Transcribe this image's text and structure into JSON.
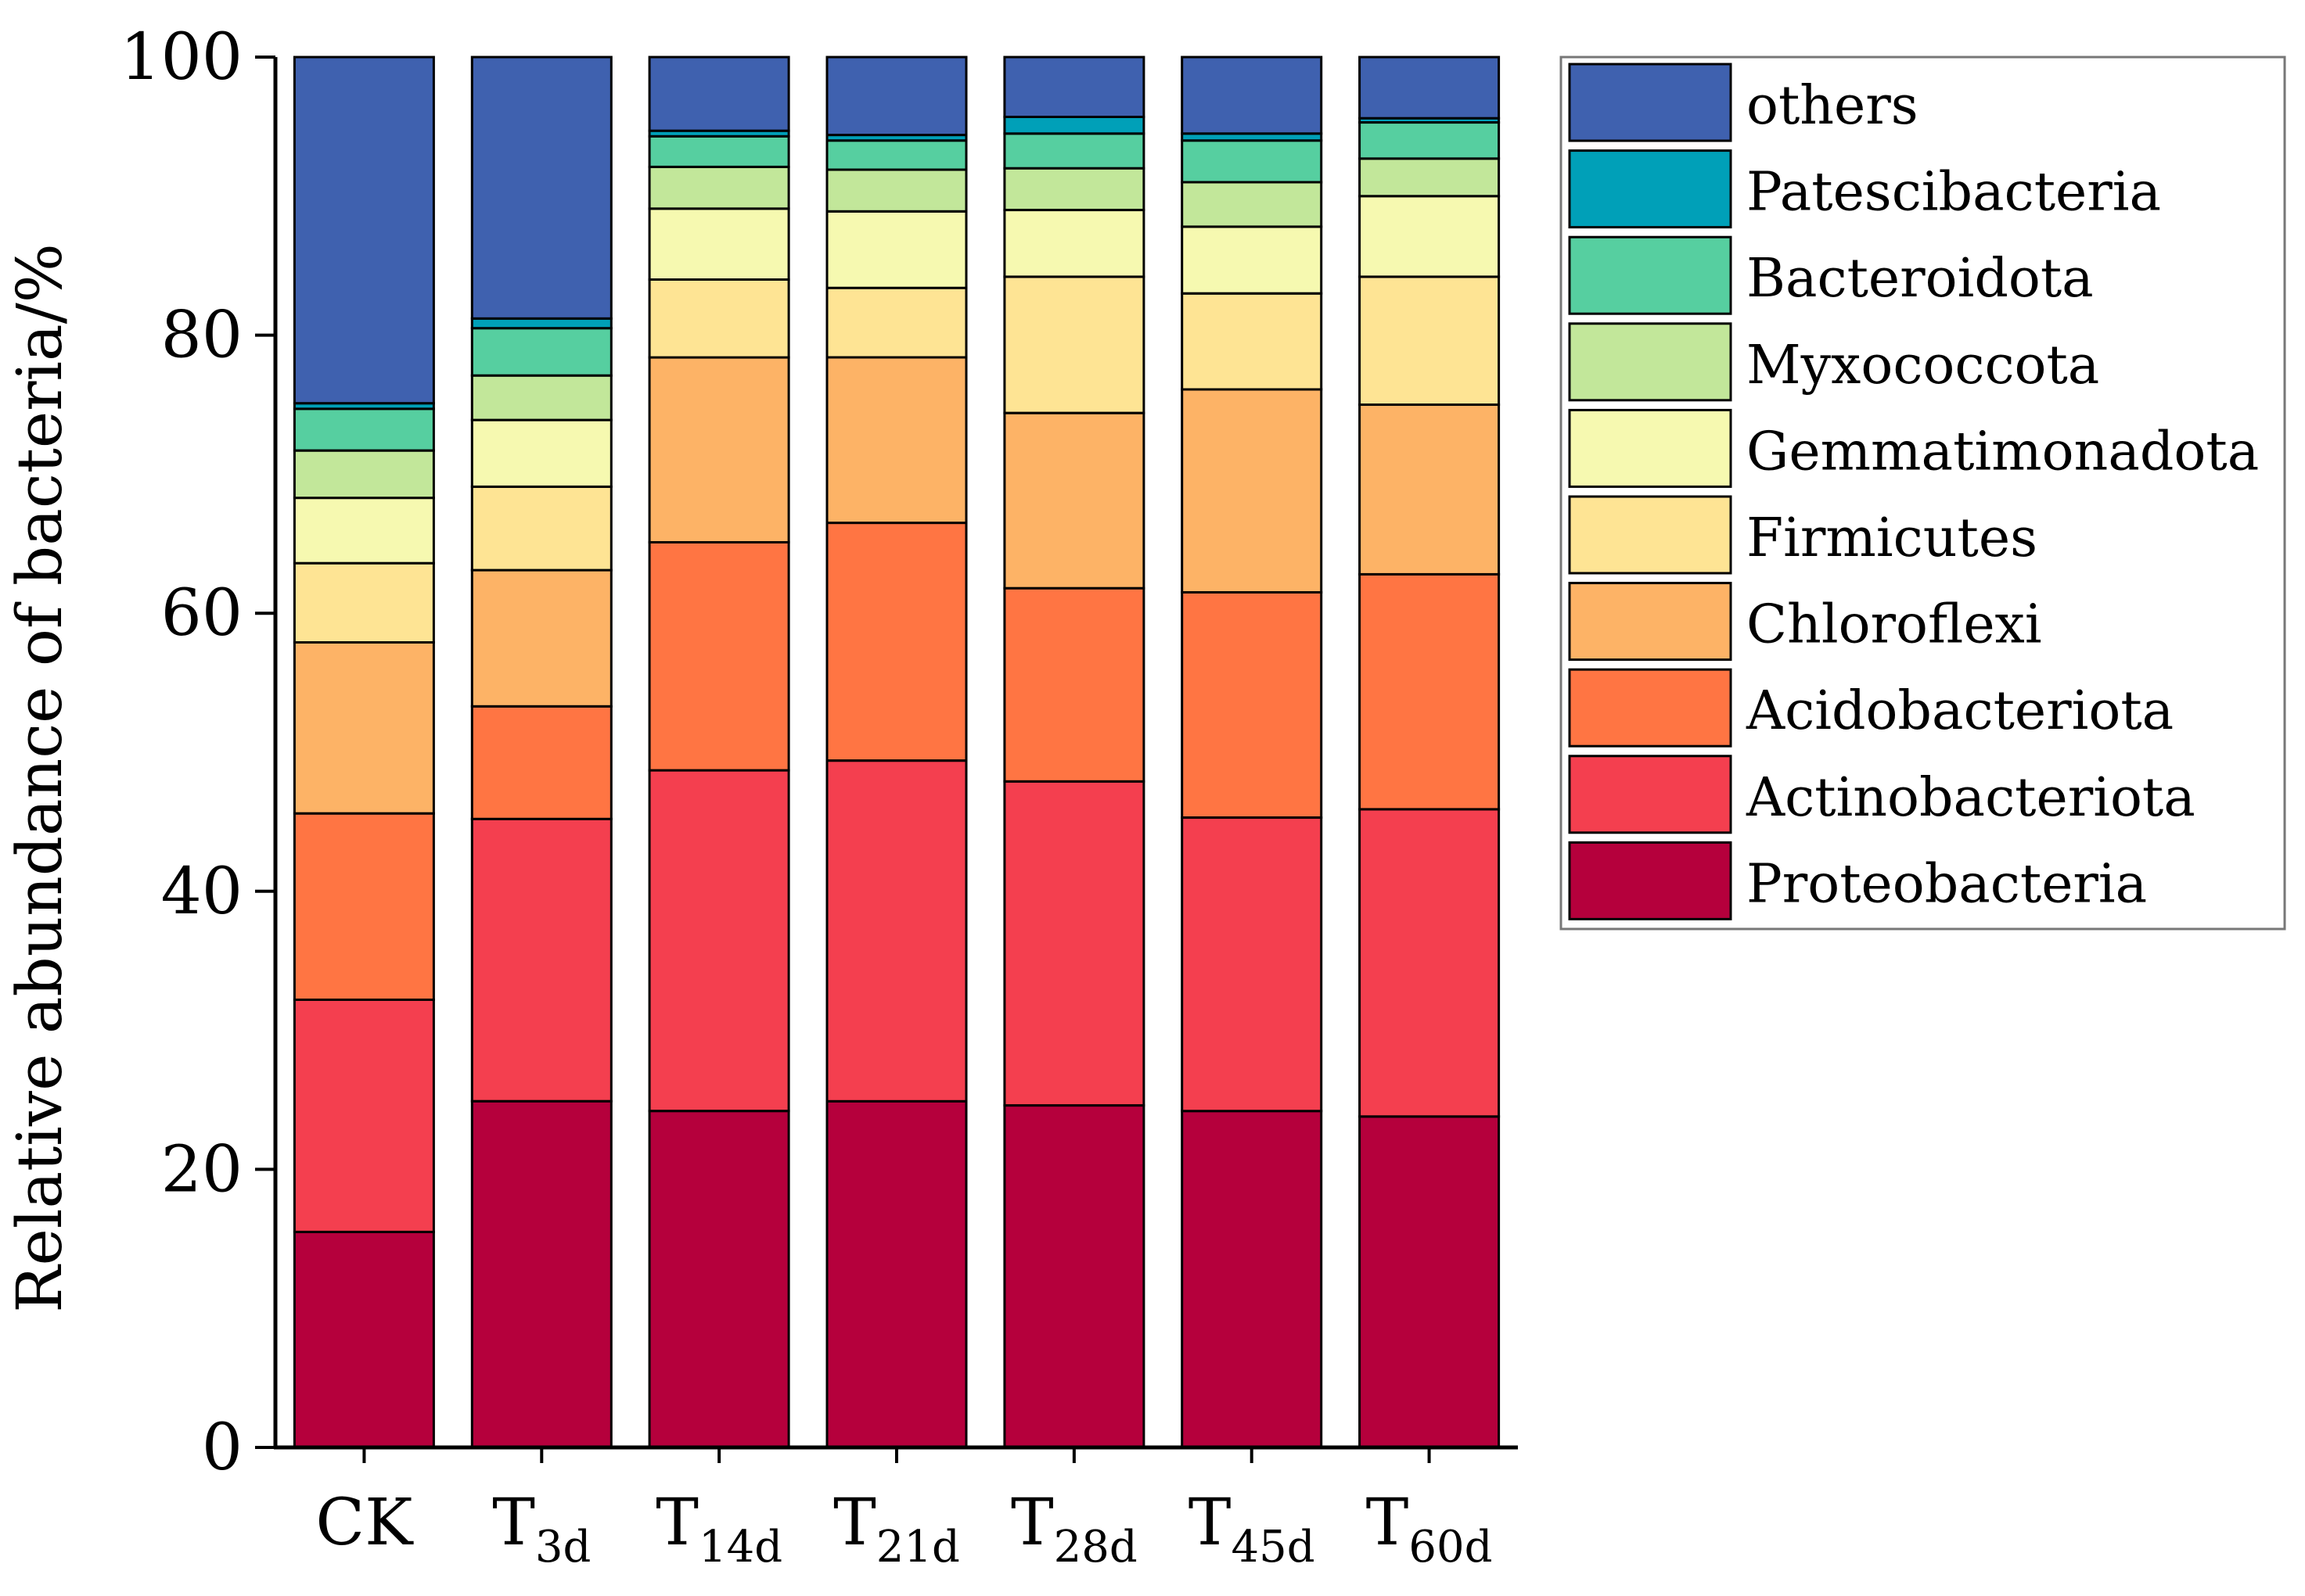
{
  "chart_data": {
    "type": "bar",
    "stacked": true,
    "title": "",
    "xlabel": "",
    "ylabel": "Relative abundance of bacteria/%",
    "ylim": [
      0,
      100
    ],
    "yticks": [
      "0",
      "20",
      "40",
      "60",
      "80",
      "100"
    ],
    "categories": [
      {
        "main": "CK",
        "sub": ""
      },
      {
        "main": "T",
        "sub": "3d"
      },
      {
        "main": "T",
        "sub": "14d"
      },
      {
        "main": "T",
        "sub": "21d"
      },
      {
        "main": "T",
        "sub": "28d"
      },
      {
        "main": "T",
        "sub": "45d"
      },
      {
        "main": "T",
        "sub": "60d"
      }
    ],
    "legend_position": "right",
    "series": [
      {
        "name": "Proteobacteria",
        "color": "#B5003C",
        "values": [
          15.5,
          24.9,
          24.2,
          24.9,
          24.6,
          24.2,
          23.8
        ]
      },
      {
        "name": "Actinobacteriota",
        "color": "#F43F4F",
        "values": [
          16.7,
          20.3,
          24.5,
          24.5,
          23.3,
          21.1,
          22.1
        ]
      },
      {
        "name": "Acidobacteriota",
        "color": "#FF7543",
        "values": [
          13.4,
          8.1,
          16.4,
          17.1,
          13.9,
          16.2,
          16.9
        ]
      },
      {
        "name": "Chloroflexi",
        "color": "#FDB366",
        "values": [
          12.3,
          9.8,
          13.3,
          11.9,
          12.6,
          14.6,
          12.2
        ]
      },
      {
        "name": "Firmicutes",
        "color": "#FEE494",
        "values": [
          5.7,
          6.0,
          5.6,
          5.0,
          9.8,
          6.9,
          9.2
        ]
      },
      {
        "name": "Gemmatimonadota",
        "color": "#F6F9B0",
        "values": [
          4.7,
          4.8,
          5.1,
          5.5,
          4.8,
          4.8,
          5.8
        ]
      },
      {
        "name": "Myxococcota",
        "color": "#C2E79A",
        "values": [
          3.4,
          3.2,
          3.0,
          3.0,
          3.0,
          3.2,
          2.7
        ]
      },
      {
        "name": "Bacteroidota",
        "color": "#56CFA0",
        "values": [
          3.0,
          3.4,
          2.2,
          2.1,
          2.5,
          3.0,
          2.6
        ]
      },
      {
        "name": "Patescibacteria",
        "color": "#00A0B8",
        "values": [
          0.4,
          0.7,
          0.4,
          0.4,
          1.2,
          0.5,
          0.3
        ]
      },
      {
        "name": "others",
        "color": "#3F61AF",
        "values": [
          24.9,
          18.8,
          5.3,
          5.6,
          4.3,
          5.5,
          4.4
        ]
      }
    ]
  }
}
